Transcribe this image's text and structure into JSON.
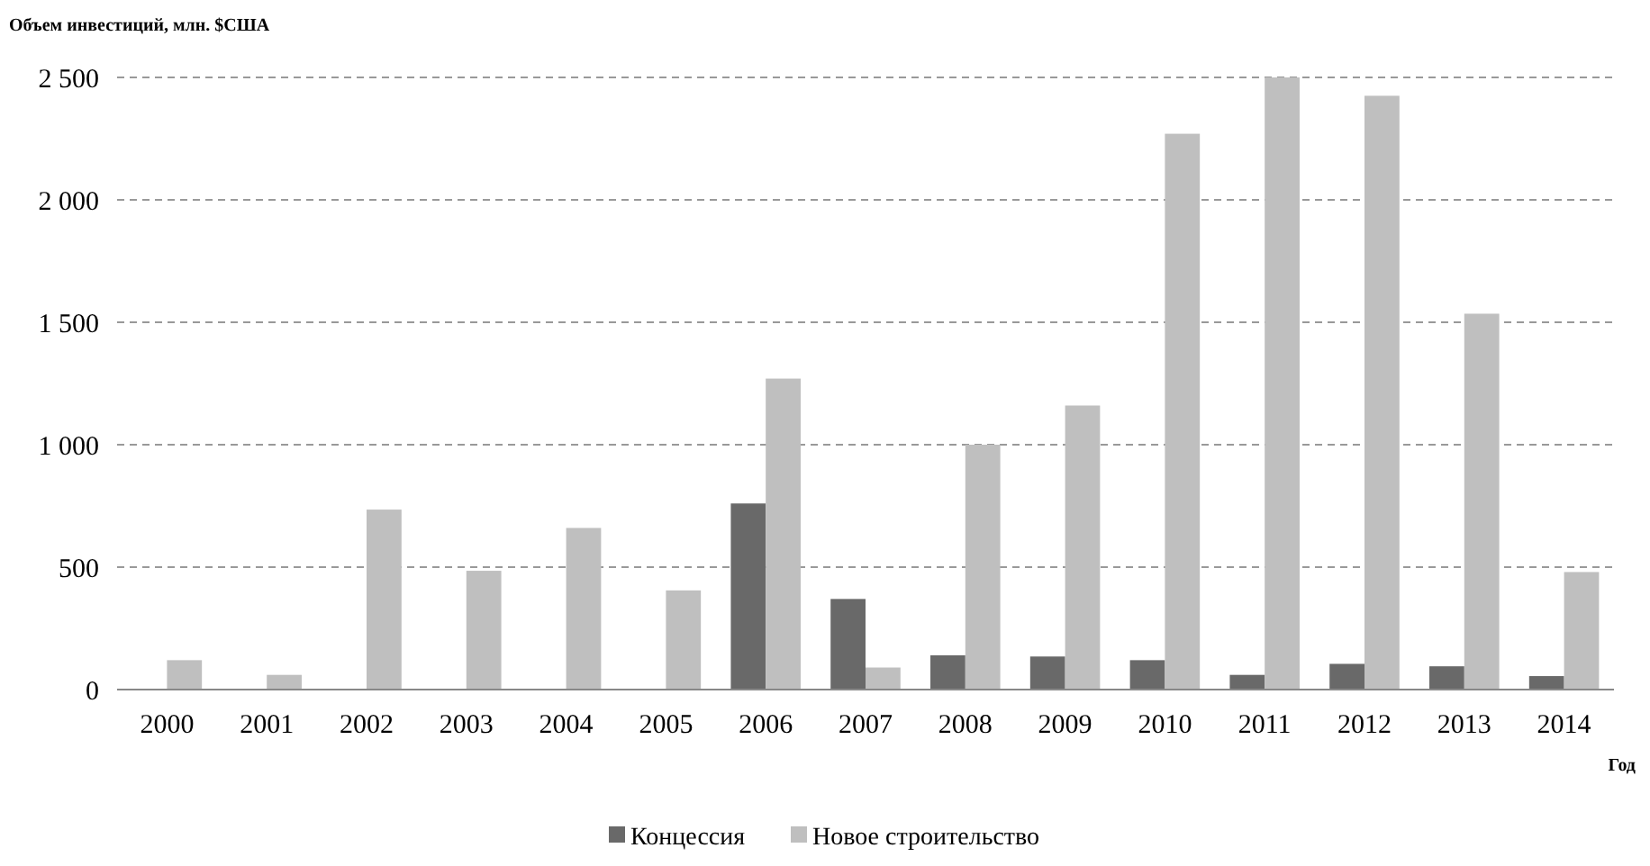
{
  "chart_data": {
    "type": "bar",
    "ylabel": "Объем инвестиций,  млн. $США",
    "xlabel": "Год",
    "categories": [
      "2000",
      "2001",
      "2002",
      "2003",
      "2004",
      "2005",
      "2006",
      "2007",
      "2008",
      "2009",
      "2010",
      "2011",
      "2012",
      "2013",
      "2014"
    ],
    "series": [
      {
        "name": "Концессия",
        "color": "#696969",
        "values": [
          0,
          0,
          0,
          0,
          0,
          0,
          760,
          370,
          140,
          135,
          120,
          60,
          105,
          95,
          55
        ]
      },
      {
        "name": "Новое строительство",
        "color": "#bfbfbf",
        "values": [
          120,
          60,
          735,
          485,
          660,
          405,
          1270,
          90,
          1000,
          1160,
          2270,
          2500,
          2425,
          1535,
          480
        ]
      }
    ],
    "ylim": [
      0,
      2500
    ],
    "yticks": [
      0,
      500,
      {
        "value": 1000,
        "label": "1 000"
      },
      {
        "value": 1500,
        "label": "1 500"
      },
      {
        "value": 2000,
        "label": "2 000"
      },
      {
        "value": 2500,
        "label": "2 500"
      }
    ],
    "grid": "y",
    "legend": "bottom"
  }
}
